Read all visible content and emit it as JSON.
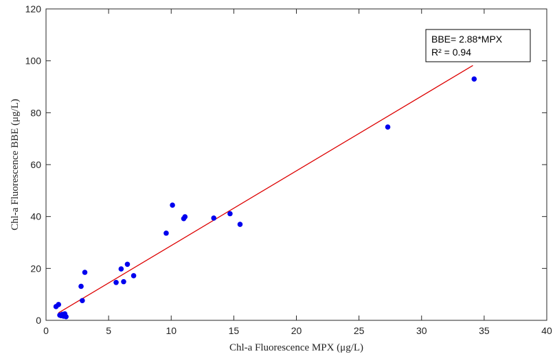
{
  "chart_data": {
    "type": "scatter",
    "title": "",
    "xlabel": "Chl-a Fluorescence MPX (μg/L)",
    "ylabel": "Chl-a Fluorescence BBE (μg/L)",
    "xlim": [
      0,
      40
    ],
    "ylim": [
      0,
      120
    ],
    "xticks": [
      0,
      5,
      10,
      15,
      20,
      25,
      30,
      35,
      40
    ],
    "yticks": [
      0,
      20,
      40,
      60,
      80,
      100,
      120
    ],
    "grid": false,
    "point_color": "#0000ee",
    "fit_color": "#dd0000",
    "points": [
      {
        "x": 0.8,
        "y": 5.3
      },
      {
        "x": 1.0,
        "y": 6.1
      },
      {
        "x": 1.1,
        "y": 2.0
      },
      {
        "x": 1.2,
        "y": 1.8
      },
      {
        "x": 1.3,
        "y": 2.3
      },
      {
        "x": 1.4,
        "y": 1.6
      },
      {
        "x": 1.5,
        "y": 1.9
      },
      {
        "x": 1.5,
        "y": 2.5
      },
      {
        "x": 1.6,
        "y": 1.4
      },
      {
        "x": 2.8,
        "y": 13.1
      },
      {
        "x": 2.9,
        "y": 7.6
      },
      {
        "x": 3.1,
        "y": 18.5
      },
      {
        "x": 5.6,
        "y": 14.6
      },
      {
        "x": 6.0,
        "y": 19.8
      },
      {
        "x": 6.2,
        "y": 14.9
      },
      {
        "x": 6.5,
        "y": 21.6
      },
      {
        "x": 7.0,
        "y": 17.2
      },
      {
        "x": 9.6,
        "y": 33.6
      },
      {
        "x": 10.1,
        "y": 44.4
      },
      {
        "x": 11.0,
        "y": 39.2
      },
      {
        "x": 11.1,
        "y": 39.9
      },
      {
        "x": 13.4,
        "y": 39.4
      },
      {
        "x": 14.7,
        "y": 41.1
      },
      {
        "x": 15.5,
        "y": 37.0
      },
      {
        "x": 27.3,
        "y": 74.5
      },
      {
        "x": 34.2,
        "y": 93.0
      }
    ],
    "fit": {
      "slope": 2.88,
      "x_start": 1.0,
      "x_end": 34.1
    },
    "legend": {
      "placement": "top-right",
      "line1": "BBE= 2.88*MPX",
      "line2": "R² = 0.94"
    }
  }
}
